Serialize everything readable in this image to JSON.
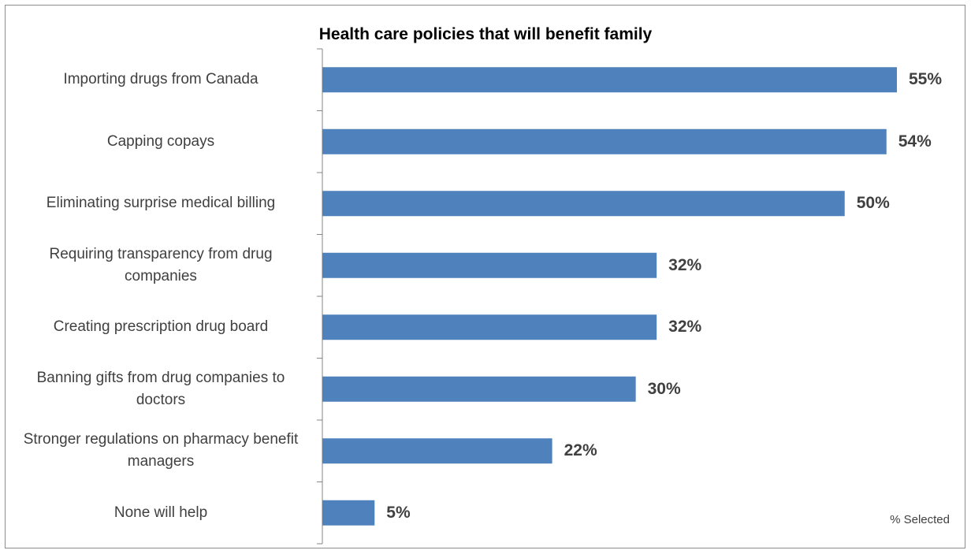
{
  "chart_data": {
    "type": "bar",
    "orientation": "horizontal",
    "title": "Health care policies that will benefit family",
    "categories": [
      "Importing drugs from Canada",
      "Capping copays",
      "Eliminating surprise medical billing",
      "Requiring transparency from drug companies",
      "Creating prescription drug board",
      "Banning gifts from drug companies to doctors",
      "Stronger regulations on pharmacy benefit managers",
      "None will help"
    ],
    "values": [
      55,
      54,
      50,
      32,
      32,
      30,
      22,
      5
    ],
    "value_labels": [
      "55%",
      "54%",
      "50%",
      "32%",
      "32%",
      "30%",
      "22%",
      "5%"
    ],
    "note": "% Selected",
    "bar_color": "#4f81bd",
    "grid": false
  }
}
